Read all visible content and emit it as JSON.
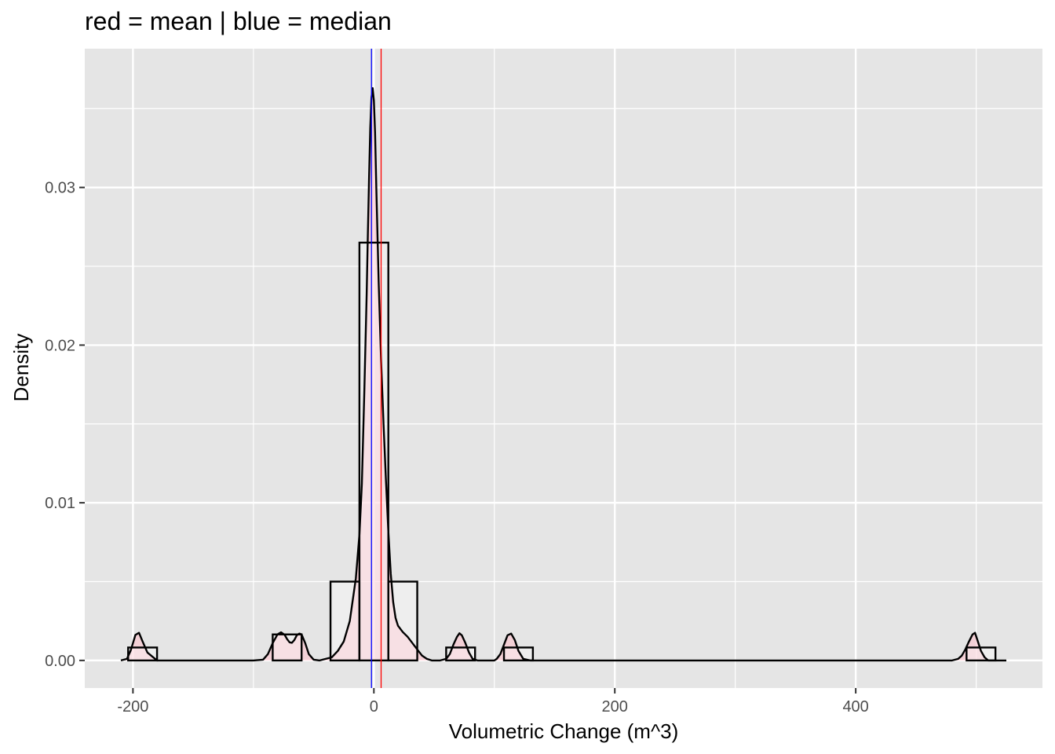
{
  "chart_data": {
    "type": "histogram",
    "title": "red = mean | blue = median",
    "xlabel": "Volumetric Change (m^3)",
    "ylabel": "Density",
    "xlim": [
      -240,
      555
    ],
    "ylim": [
      -0.00175,
      0.0388
    ],
    "x_ticks": [
      -200,
      0,
      200,
      400
    ],
    "x_tick_labels": [
      "-200",
      "0",
      "200",
      "400"
    ],
    "y_ticks": [
      0.0,
      0.01,
      0.02,
      0.03
    ],
    "y_tick_labels": [
      "0.00",
      "0.01",
      "0.02",
      "0.03"
    ],
    "grid": true,
    "colors": {
      "panel": "#e5e5e5",
      "grid": "#ffffff",
      "bar_fill": "#ffffff",
      "bar_outline": "#000000",
      "density_fill": "#ffc0cb",
      "density_line": "#000000",
      "mean_line": "#ff0000",
      "median_line": "#0000ff"
    },
    "histogram": {
      "bins": [
        {
          "x0": -204,
          "x1": -180,
          "density": 0.00082
        },
        {
          "x0": -84,
          "x1": -60,
          "density": 0.00165
        },
        {
          "x0": -36,
          "x1": -12,
          "density": 0.005
        },
        {
          "x0": -12,
          "x1": 12,
          "density": 0.0265
        },
        {
          "x0": 12,
          "x1": 36,
          "density": 0.005
        },
        {
          "x0": 60,
          "x1": 84,
          "density": 0.00082
        },
        {
          "x0": 108,
          "x1": 132,
          "density": 0.00082
        },
        {
          "x0": 492,
          "x1": 516,
          "density": 0.00082
        }
      ]
    },
    "density_curve": {
      "x": [
        -210,
        -205,
        -202,
        -200,
        -198,
        -195,
        -192,
        -188,
        -180,
        -150,
        -100,
        -92,
        -88,
        -84,
        -80,
        -77,
        -74,
        -72,
        -70,
        -68,
        -66,
        -64,
        -62,
        -60,
        -57,
        -54,
        -50,
        -45,
        -35,
        -30,
        -25,
        -20,
        -15,
        -12,
        -10,
        -8,
        -6,
        -5,
        -4,
        -3,
        -2,
        -1,
        0,
        1,
        2,
        4,
        6,
        8,
        10,
        12,
        14,
        16,
        18,
        20,
        24,
        28,
        32,
        36,
        40,
        44,
        48,
        55,
        60,
        63,
        66,
        69,
        71,
        73,
        76,
        79,
        82,
        86,
        92,
        100,
        102,
        105,
        108,
        111,
        114,
        117,
        120,
        124,
        130,
        150,
        200,
        300,
        400,
        480,
        485,
        488,
        491,
        494,
        497,
        499,
        501,
        504,
        507,
        510,
        515,
        525
      ],
      "y": [
        0.0,
        0.0001,
        0.0006,
        0.0011,
        0.00162,
        0.00175,
        0.0012,
        0.0005,
        0.0,
        0.0,
        0.0,
        5e-05,
        0.0004,
        0.0011,
        0.00165,
        0.00178,
        0.00162,
        0.00135,
        0.00115,
        0.00112,
        0.0013,
        0.0016,
        0.0017,
        0.00165,
        0.0011,
        0.0004,
        5e-05,
        0.0,
        0.0002,
        0.0006,
        0.0012,
        0.0025,
        0.0052,
        0.008,
        0.0112,
        0.0168,
        0.0232,
        0.027,
        0.0307,
        0.0338,
        0.0357,
        0.0363,
        0.0355,
        0.0335,
        0.03,
        0.024,
        0.019,
        0.015,
        0.0115,
        0.0082,
        0.0055,
        0.0037,
        0.0027,
        0.0022,
        0.0018,
        0.0015,
        0.0011,
        0.0007,
        0.0003,
        0.0001,
        0.0,
        0.0,
        0.0001,
        0.0004,
        0.001,
        0.0015,
        0.00172,
        0.0016,
        0.0011,
        0.0005,
        0.0001,
        0.0,
        0.0,
        0.0,
        0.0001,
        0.0004,
        0.001,
        0.0016,
        0.0017,
        0.0013,
        0.0006,
        0.0001,
        0.0,
        0.0,
        0.0,
        0.0,
        0.0,
        0.0,
        0.0001,
        0.0003,
        0.0007,
        0.0012,
        0.00165,
        0.00175,
        0.0013,
        0.0006,
        0.0002,
        0.0,
        0.0,
        0.0
      ]
    },
    "mean": 6,
    "median": -2
  }
}
